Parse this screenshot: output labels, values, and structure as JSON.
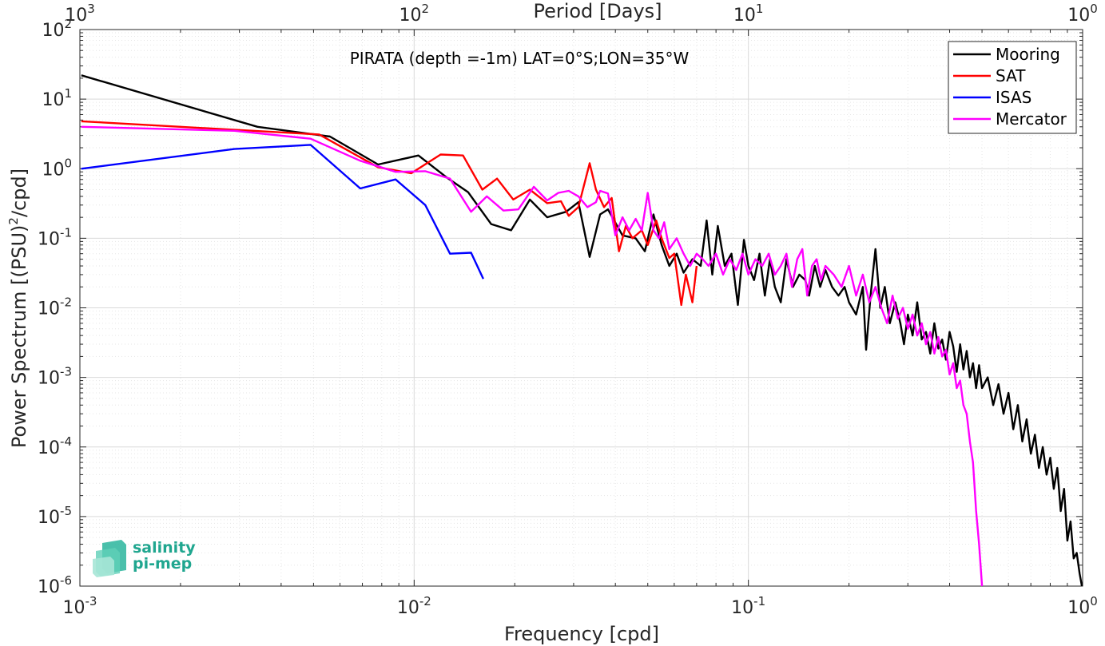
{
  "chart_data": {
    "type": "line",
    "title": "",
    "annotation": "PIRATA (depth =-1m) LAT=0°S;LON=35°W",
    "xlabel": "Frequency [cpd]",
    "ylabel_main": "Power Spectrum [(PSU)",
    "ylabel_sup": "2",
    "ylabel_tail": "/cpd]",
    "top_xlabel": "Period [Days]",
    "xscale": "log",
    "yscale": "log",
    "xlim": [
      0.001,
      1
    ],
    "ylim": [
      1e-06,
      100
    ],
    "grid": true,
    "legend_position": "top-right",
    "x_ticks": [
      {
        "value": 0.001,
        "base": "10",
        "exp": "-3"
      },
      {
        "value": 0.01,
        "base": "10",
        "exp": "-2"
      },
      {
        "value": 0.1,
        "base": "10",
        "exp": "-1"
      },
      {
        "value": 1,
        "base": "10",
        "exp": "0"
      }
    ],
    "top_ticks": [
      {
        "freq": 0.001,
        "base": "10",
        "exp": "3"
      },
      {
        "freq": 0.01,
        "base": "10",
        "exp": "2"
      },
      {
        "freq": 0.1,
        "base": "10",
        "exp": "1"
      },
      {
        "freq": 1,
        "base": "10",
        "exp": "0"
      }
    ],
    "y_ticks": [
      {
        "value": 100,
        "base": "10",
        "exp": "2"
      },
      {
        "value": 10,
        "base": "10",
        "exp": "1"
      },
      {
        "value": 1,
        "base": "10",
        "exp": "0"
      },
      {
        "value": 0.1,
        "base": "10",
        "exp": "-1"
      },
      {
        "value": 0.01,
        "base": "10",
        "exp": "-2"
      },
      {
        "value": 0.001,
        "base": "10",
        "exp": "-3"
      },
      {
        "value": 0.0001,
        "base": "10",
        "exp": "-4"
      },
      {
        "value": 1e-05,
        "base": "10",
        "exp": "-5"
      },
      {
        "value": 1e-06,
        "base": "10",
        "exp": "-6"
      }
    ],
    "series": [
      {
        "name": "Mooring",
        "color": "#000000",
        "points": [
          [
            0.00101,
            22
          ],
          [
            0.0034,
            4
          ],
          [
            0.0056,
            2.9
          ],
          [
            0.0078,
            1.15
          ],
          [
            0.0103,
            1.55
          ],
          [
            0.0125,
            0.75
          ],
          [
            0.0145,
            0.46
          ],
          [
            0.017,
            0.16
          ],
          [
            0.0195,
            0.13
          ],
          [
            0.0222,
            0.36
          ],
          [
            0.025,
            0.2
          ],
          [
            0.0285,
            0.24
          ],
          [
            0.031,
            0.33
          ],
          [
            0.0335,
            0.054
          ],
          [
            0.036,
            0.22
          ],
          [
            0.038,
            0.26
          ],
          [
            0.042,
            0.11
          ],
          [
            0.046,
            0.1
          ],
          [
            0.049,
            0.065
          ],
          [
            0.052,
            0.22
          ],
          [
            0.055,
            0.08
          ],
          [
            0.058,
            0.04
          ],
          [
            0.061,
            0.06
          ],
          [
            0.064,
            0.032
          ],
          [
            0.068,
            0.05
          ],
          [
            0.072,
            0.04
          ],
          [
            0.075,
            0.18
          ],
          [
            0.078,
            0.03
          ],
          [
            0.081,
            0.15
          ],
          [
            0.085,
            0.04
          ],
          [
            0.089,
            0.06
          ],
          [
            0.093,
            0.011
          ],
          [
            0.097,
            0.095
          ],
          [
            0.1,
            0.04
          ],
          [
            0.104,
            0.025
          ],
          [
            0.108,
            0.06
          ],
          [
            0.112,
            0.015
          ],
          [
            0.116,
            0.05
          ],
          [
            0.12,
            0.02
          ],
          [
            0.125,
            0.012
          ],
          [
            0.13,
            0.05
          ],
          [
            0.136,
            0.02
          ],
          [
            0.142,
            0.03
          ],
          [
            0.148,
            0.025
          ],
          [
            0.152,
            0.015
          ],
          [
            0.158,
            0.04
          ],
          [
            0.164,
            0.02
          ],
          [
            0.17,
            0.035
          ],
          [
            0.178,
            0.02
          ],
          [
            0.186,
            0.015
          ],
          [
            0.194,
            0.02
          ],
          [
            0.2,
            0.012
          ],
          [
            0.21,
            0.008
          ],
          [
            0.22,
            0.02
          ],
          [
            0.225,
            0.0025
          ],
          [
            0.232,
            0.015
          ],
          [
            0.24,
            0.07
          ],
          [
            0.248,
            0.01
          ],
          [
            0.256,
            0.02
          ],
          [
            0.265,
            0.006
          ],
          [
            0.275,
            0.012
          ],
          [
            0.285,
            0.006
          ],
          [
            0.292,
            0.003
          ],
          [
            0.3,
            0.008
          ],
          [
            0.31,
            0.004
          ],
          [
            0.32,
            0.012
          ],
          [
            0.33,
            0.0035
          ],
          [
            0.34,
            0.0045
          ],
          [
            0.35,
            0.0022
          ],
          [
            0.36,
            0.006
          ],
          [
            0.37,
            0.0026
          ],
          [
            0.38,
            0.0035
          ],
          [
            0.39,
            0.0018
          ],
          [
            0.4,
            0.0045
          ],
          [
            0.41,
            0.0028
          ],
          [
            0.42,
            0.0012
          ],
          [
            0.43,
            0.003
          ],
          [
            0.44,
            0.0013
          ],
          [
            0.45,
            0.0024
          ],
          [
            0.46,
            0.001
          ],
          [
            0.47,
            0.0016
          ],
          [
            0.48,
            0.0007
          ],
          [
            0.49,
            0.0015
          ],
          [
            0.5,
            0.0007
          ],
          [
            0.52,
            0.001
          ],
          [
            0.54,
            0.0004
          ],
          [
            0.56,
            0.0008
          ],
          [
            0.58,
            0.0003
          ],
          [
            0.6,
            0.0006
          ],
          [
            0.62,
            0.00018
          ],
          [
            0.64,
            0.0004
          ],
          [
            0.66,
            0.00012
          ],
          [
            0.68,
            0.00025
          ],
          [
            0.7,
            8e-05
          ],
          [
            0.72,
            0.00015
          ],
          [
            0.74,
            5e-05
          ],
          [
            0.76,
            0.0001
          ],
          [
            0.78,
            4e-05
          ],
          [
            0.8,
            7e-05
          ],
          [
            0.82,
            2.5e-05
          ],
          [
            0.84,
            5e-05
          ],
          [
            0.86,
            1.2e-05
          ],
          [
            0.88,
            2.5e-05
          ],
          [
            0.9,
            4.5e-06
          ],
          [
            0.92,
            8.5e-06
          ],
          [
            0.94,
            2.5e-06
          ],
          [
            0.96,
            3e-06
          ],
          [
            0.98,
            1.5e-06
          ],
          [
            0.995,
            1e-06
          ]
        ]
      },
      {
        "name": "SAT",
        "color": "#ff0000",
        "points": [
          [
            0.00101,
            4.8
          ],
          [
            0.0052,
            3.1
          ],
          [
            0.0078,
            1.05
          ],
          [
            0.0098,
            0.86
          ],
          [
            0.012,
            1.6
          ],
          [
            0.014,
            1.55
          ],
          [
            0.016,
            0.5
          ],
          [
            0.0177,
            0.72
          ],
          [
            0.0198,
            0.36
          ],
          [
            0.0222,
            0.5
          ],
          [
            0.025,
            0.32
          ],
          [
            0.0275,
            0.34
          ],
          [
            0.029,
            0.21
          ],
          [
            0.031,
            0.28
          ],
          [
            0.0335,
            1.2
          ],
          [
            0.035,
            0.5
          ],
          [
            0.037,
            0.28
          ],
          [
            0.039,
            0.38
          ],
          [
            0.041,
            0.065
          ],
          [
            0.043,
            0.15
          ],
          [
            0.045,
            0.1
          ],
          [
            0.048,
            0.13
          ],
          [
            0.05,
            0.08
          ],
          [
            0.053,
            0.18
          ],
          [
            0.055,
            0.1
          ],
          [
            0.058,
            0.052
          ],
          [
            0.06,
            0.06
          ],
          [
            0.063,
            0.011
          ],
          [
            0.065,
            0.03
          ],
          [
            0.068,
            0.012
          ],
          [
            0.07,
            0.04
          ]
        ]
      },
      {
        "name": "ISAS",
        "color": "#0000ff",
        "points": [
          [
            0.00101,
            1.0
          ],
          [
            0.0029,
            1.92
          ],
          [
            0.0049,
            2.2
          ],
          [
            0.0069,
            0.52
          ],
          [
            0.0088,
            0.7
          ],
          [
            0.0108,
            0.3
          ],
          [
            0.0128,
            0.06
          ],
          [
            0.0148,
            0.062
          ],
          [
            0.0161,
            0.026
          ]
        ]
      },
      {
        "name": "Mercator",
        "color": "#ff00ff",
        "points": [
          [
            0.00101,
            4.0
          ],
          [
            0.0029,
            3.5
          ],
          [
            0.0049,
            2.7
          ],
          [
            0.0069,
            1.3
          ],
          [
            0.0088,
            0.9
          ],
          [
            0.0108,
            0.92
          ],
          [
            0.0128,
            0.72
          ],
          [
            0.0148,
            0.24
          ],
          [
            0.0165,
            0.4
          ],
          [
            0.0185,
            0.25
          ],
          [
            0.0205,
            0.26
          ],
          [
            0.0228,
            0.55
          ],
          [
            0.025,
            0.35
          ],
          [
            0.027,
            0.45
          ],
          [
            0.029,
            0.48
          ],
          [
            0.031,
            0.4
          ],
          [
            0.033,
            0.28
          ],
          [
            0.035,
            0.33
          ],
          [
            0.036,
            0.48
          ],
          [
            0.038,
            0.44
          ],
          [
            0.04,
            0.11
          ],
          [
            0.042,
            0.2
          ],
          [
            0.044,
            0.13
          ],
          [
            0.046,
            0.19
          ],
          [
            0.048,
            0.13
          ],
          [
            0.05,
            0.45
          ],
          [
            0.052,
            0.13
          ],
          [
            0.054,
            0.1
          ],
          [
            0.056,
            0.17
          ],
          [
            0.058,
            0.07
          ],
          [
            0.061,
            0.1
          ],
          [
            0.064,
            0.06
          ],
          [
            0.067,
            0.04
          ],
          [
            0.07,
            0.06
          ],
          [
            0.073,
            0.05
          ],
          [
            0.076,
            0.04
          ],
          [
            0.08,
            0.06
          ],
          [
            0.084,
            0.03
          ],
          [
            0.088,
            0.05
          ],
          [
            0.092,
            0.035
          ],
          [
            0.096,
            0.06
          ],
          [
            0.1,
            0.03
          ],
          [
            0.105,
            0.05
          ],
          [
            0.11,
            0.04
          ],
          [
            0.115,
            0.06
          ],
          [
            0.12,
            0.03
          ],
          [
            0.125,
            0.04
          ],
          [
            0.13,
            0.06
          ],
          [
            0.135,
            0.02
          ],
          [
            0.14,
            0.05
          ],
          [
            0.145,
            0.07
          ],
          [
            0.15,
            0.015
          ],
          [
            0.155,
            0.04
          ],
          [
            0.16,
            0.05
          ],
          [
            0.165,
            0.025
          ],
          [
            0.17,
            0.04
          ],
          [
            0.18,
            0.03
          ],
          [
            0.19,
            0.02
          ],
          [
            0.2,
            0.04
          ],
          [
            0.21,
            0.015
          ],
          [
            0.22,
            0.03
          ],
          [
            0.23,
            0.012
          ],
          [
            0.24,
            0.02
          ],
          [
            0.25,
            0.01
          ],
          [
            0.26,
            0.006
          ],
          [
            0.27,
            0.015
          ],
          [
            0.28,
            0.007
          ],
          [
            0.29,
            0.01
          ],
          [
            0.3,
            0.005
          ],
          [
            0.31,
            0.008
          ],
          [
            0.32,
            0.004
          ],
          [
            0.33,
            0.006
          ],
          [
            0.34,
            0.003
          ],
          [
            0.35,
            0.0045
          ],
          [
            0.36,
            0.0022
          ],
          [
            0.37,
            0.0038
          ],
          [
            0.38,
            0.002
          ],
          [
            0.39,
            0.0025
          ],
          [
            0.4,
            0.0011
          ],
          [
            0.41,
            0.0016
          ],
          [
            0.42,
            0.0007
          ],
          [
            0.43,
            0.0009
          ],
          [
            0.44,
            0.0004
          ],
          [
            0.45,
            0.0003
          ],
          [
            0.46,
            0.00012
          ],
          [
            0.47,
            6e-05
          ],
          [
            0.48,
            1.2e-05
          ],
          [
            0.49,
            4e-06
          ],
          [
            0.5,
            1e-06
          ]
        ]
      }
    ]
  },
  "logo": {
    "line1": "salinity",
    "line2": "pi-mep",
    "color_text": "#1fa68f",
    "color_shape": "#2ab59c"
  }
}
